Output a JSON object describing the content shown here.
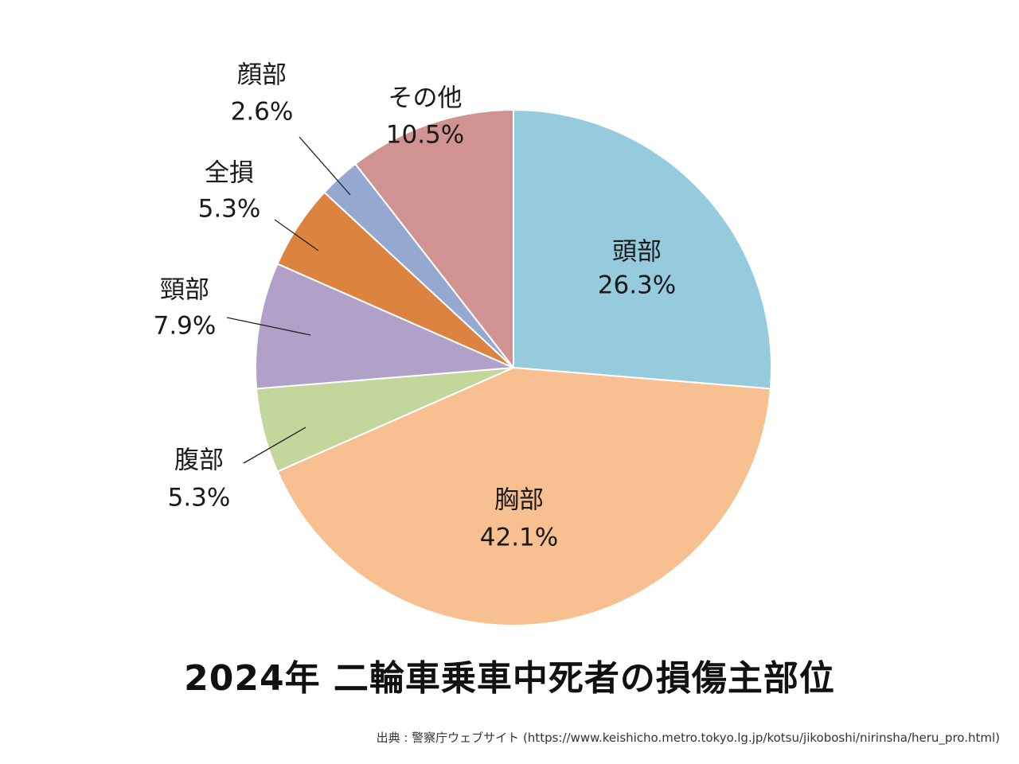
{
  "chart_data": {
    "type": "pie",
    "title": "2024年 二輪車乗車中死者の損傷主部位",
    "source": "出典 : 警察庁ウェブサイト (https://www.keishicho.metro.tokyo.lg.jp/kotsu/jikoboshi/nirinsha/heru_pro.html)",
    "start_angle_deg": 0,
    "direction": "clockwise",
    "slices": [
      {
        "label": "頭部",
        "value": 26.3,
        "display": "26.3%",
        "color": "#96cbdd",
        "label_position": "inside"
      },
      {
        "label": "胸部",
        "value": 42.1,
        "display": "42.1%",
        "color": "#f8bf90",
        "label_position": "inside"
      },
      {
        "label": "腹部",
        "value": 5.3,
        "display": "5.3%",
        "color": "#c3d69b",
        "label_position": "outside"
      },
      {
        "label": "頸部",
        "value": 7.9,
        "display": "7.9%",
        "color": "#b1a0c7",
        "label_position": "outside"
      },
      {
        "label": "全損",
        "value": 5.3,
        "display": "5.3%",
        "color": "#dc843f",
        "label_position": "outside"
      },
      {
        "label": "顔部",
        "value": 2.6,
        "display": "2.6%",
        "color": "#95a9d0",
        "label_position": "outside"
      },
      {
        "label": "その他",
        "value": 10.5,
        "display": "10.5%",
        "color": "#d09392",
        "label_position": "outside"
      }
    ]
  }
}
